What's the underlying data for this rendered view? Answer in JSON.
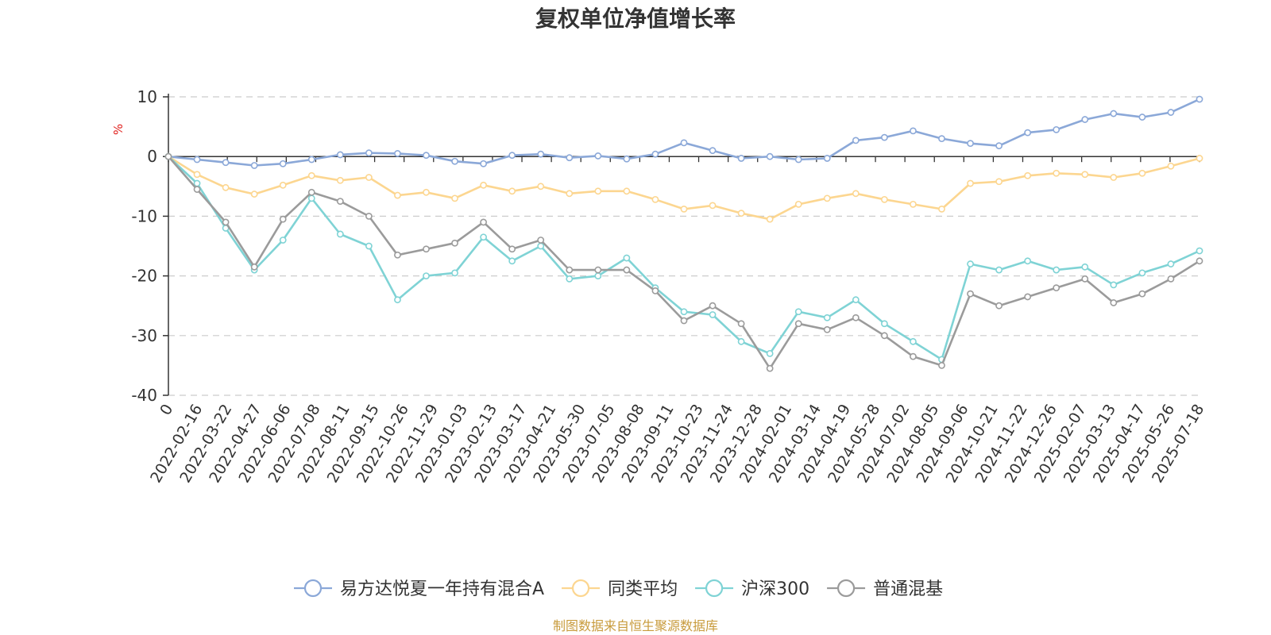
{
  "chart_data": {
    "type": "line",
    "title": "复权单位净值增长率",
    "unit_label": "%",
    "ylim": [
      -40,
      10
    ],
    "yticks": [
      10,
      0,
      -10,
      -20,
      -30,
      -40
    ],
    "grid": true,
    "legend_position": "bottom",
    "x_tick_labels": [
      "0",
      "2022-02-16",
      "2022-03-22",
      "2022-04-27",
      "2022-06-06",
      "2022-07-08",
      "2022-08-11",
      "2022-09-15",
      "2022-10-26",
      "2022-11-29",
      "2023-01-03",
      "2023-02-13",
      "2023-03-17",
      "2023-04-21",
      "2023-05-30",
      "2023-07-05",
      "2023-08-08",
      "2023-09-11",
      "2023-10-23",
      "2023-11-24",
      "2023-12-28",
      "2024-02-01",
      "2024-03-14",
      "2024-04-19",
      "2024-05-28",
      "2024-07-02",
      "2024-08-05",
      "2024-09-06",
      "2024-10-21",
      "2024-11-22",
      "2024-12-26",
      "2025-02-07",
      "2025-03-13",
      "2025-04-17",
      "2025-05-26",
      "2025-07-18"
    ],
    "series": [
      {
        "name": "易方达悦夏一年持有混合A",
        "color": "#8ba8d8",
        "values": [
          0,
          -0.5,
          -1.0,
          -1.5,
          -1.2,
          -0.5,
          0.3,
          0.6,
          0.5,
          0.2,
          -0.8,
          -1.2,
          0.2,
          0.4,
          -0.2,
          0.1,
          -0.4,
          0.4,
          2.3,
          1.0,
          -0.3,
          0.0,
          -0.5,
          -0.3,
          2.7,
          3.2,
          4.3,
          3.0,
          2.2,
          1.8,
          4.0,
          4.5,
          6.2,
          7.2,
          6.6,
          7.4,
          9.6
        ]
      },
      {
        "name": "同类平均",
        "color": "#fcd690",
        "values": [
          0,
          -3.0,
          -5.2,
          -6.3,
          -4.8,
          -3.2,
          -4.0,
          -3.5,
          -6.5,
          -6.0,
          -7.0,
          -4.8,
          -5.8,
          -5.0,
          -6.2,
          -5.8,
          -5.8,
          -7.2,
          -8.8,
          -8.2,
          -9.5,
          -10.5,
          -8.0,
          -7.0,
          -6.2,
          -7.2,
          -8.0,
          -8.8,
          -4.5,
          -4.2,
          -3.2,
          -2.8,
          -3.0,
          -3.5,
          -2.8,
          -1.6,
          -0.3
        ]
      },
      {
        "name": "沪深300",
        "color": "#7fd3d5",
        "values": [
          0,
          -4.5,
          -12.0,
          -19.0,
          -14.0,
          -7.0,
          -13.0,
          -15.0,
          -24.0,
          -20.0,
          -19.5,
          -13.5,
          -17.5,
          -15.0,
          -20.5,
          -20.0,
          -17.0,
          -22.0,
          -26.0,
          -26.5,
          -31.0,
          -33.0,
          -26.0,
          -27.0,
          -24.0,
          -28.0,
          -31.0,
          -34.0,
          -18.0,
          -19.0,
          -17.5,
          -19.0,
          -18.5,
          -21.5,
          -19.5,
          -18.0,
          -15.8
        ]
      },
      {
        "name": "普通混基",
        "color": "#9b9b9b",
        "values": [
          0,
          -5.5,
          -11.0,
          -18.5,
          -10.5,
          -6.0,
          -7.5,
          -10.0,
          -16.5,
          -15.5,
          -14.5,
          -11.0,
          -15.5,
          -14.0,
          -19.0,
          -19.0,
          -19.0,
          -22.5,
          -27.5,
          -25.0,
          -28.0,
          -35.5,
          -28.0,
          -29.0,
          -27.0,
          -30.0,
          -33.5,
          -35.0,
          -23.0,
          -25.0,
          -23.5,
          -22.0,
          -20.5,
          -24.5,
          -23.0,
          -20.5,
          -17.5
        ]
      }
    ]
  },
  "footer": "制图数据来自恒生聚源数据库"
}
